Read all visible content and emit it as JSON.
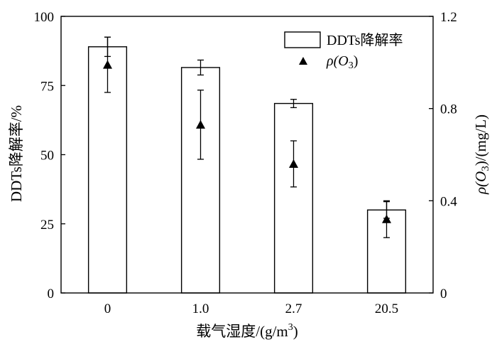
{
  "chart_data": {
    "type": "bar",
    "title": "",
    "xlabel": "载气湿度/(g/m³)",
    "xlabel_main": "载气湿度/(g/m",
    "xlabel_sup": "3",
    "xlabel_end": ")",
    "ylabel": "DDTs降解率/%",
    "y2label": "ρ(O3)/(mg/L)",
    "y2label_pre": "ρ(O",
    "y2label_sub": "3",
    "y2label_post": ")/(mg/L)",
    "categories": [
      "0",
      "1.0",
      "2.7",
      "20.5"
    ],
    "ylim": [
      0,
      100
    ],
    "y_ticks": [
      "0",
      "25",
      "50",
      "75",
      "100"
    ],
    "y2lim": [
      0,
      1.2
    ],
    "y2_ticks": [
      "0",
      "0.4",
      "0.8",
      "1.2"
    ],
    "legend_position": "top-right",
    "series": [
      {
        "name": "DDTs降解率",
        "type": "bar",
        "axis": "left",
        "values": [
          89,
          81.5,
          68.5,
          30
        ],
        "errors": [
          3.5,
          2.7,
          1.5,
          3
        ]
      },
      {
        "name": "ρ(O3)",
        "name_pre": "ρ(O",
        "name_sub": "3",
        "name_post": ")",
        "type": "scatter",
        "marker": "triangle",
        "axis": "right",
        "values": [
          0.99,
          0.73,
          0.56,
          0.32
        ],
        "errors": [
          0.12,
          0.15,
          0.1,
          0.08
        ]
      }
    ]
  }
}
